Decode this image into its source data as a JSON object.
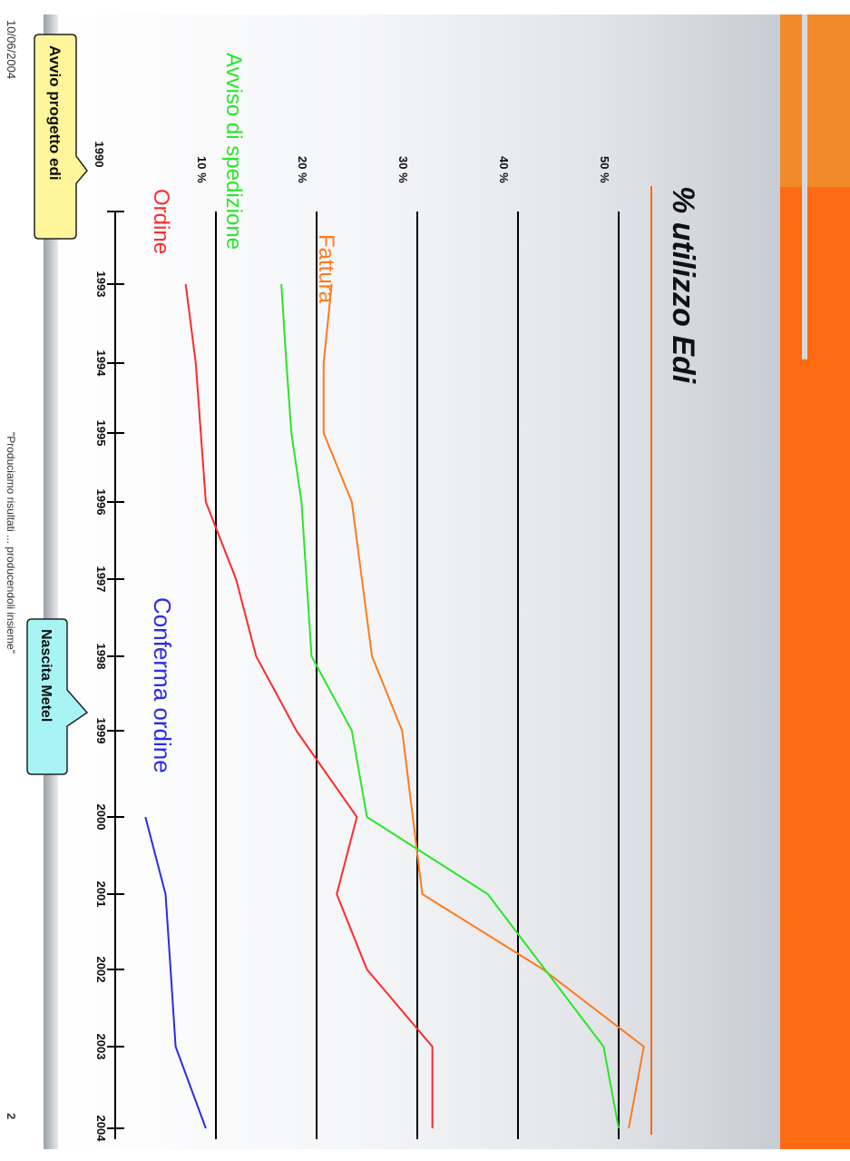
{
  "slide": {
    "date": "10/06/2004",
    "footer": "\"Produciamo risultati ... producendoli insieme\"",
    "page_number": "2",
    "callout_edi": "Avvio progetto edi",
    "callout_metel": "Nascita Metel"
  },
  "colors": {
    "accent": "#ff6a12",
    "Ordine": "#ff2a2a",
    "Avviso di spedizione": "#29e629",
    "Fattura": "#ff7a1e",
    "Conferma ordine": "#2b2be8",
    "callout_edi_bg": "#fff59a",
    "callout_metel_bg": "#a8f4f4"
  },
  "chart_data": {
    "type": "line",
    "orientation": "rotated-90",
    "title": "% utilizzo Edi",
    "xlabel": "",
    "ylabel": "",
    "x_ticks": [
      "1990",
      "1993",
      "1994",
      "1995",
      "1996",
      "1997",
      "1998",
      "1999",
      "2000",
      "2001",
      "2002",
      "2003",
      "2004"
    ],
    "y_ticks": [
      "10 %",
      "20 %",
      "30 %",
      "40 %",
      "50 %"
    ],
    "ylim": [
      0,
      55
    ],
    "grid": true,
    "series": [
      {
        "name": "Fattura",
        "points": [
          {
            "x": "1993",
            "y": 21.5
          },
          {
            "x": "1994",
            "y": 20.7
          },
          {
            "x": "1995",
            "y": 20.7
          },
          {
            "x": "1996",
            "y": 23.5
          },
          {
            "x": "1998",
            "y": 25.5
          },
          {
            "x": "1999",
            "y": 28.5
          },
          {
            "x": "2001",
            "y": 30.5
          },
          {
            "x": "2002",
            "y": 42.5
          },
          {
            "x": "2003",
            "y": 52.5
          },
          {
            "x": "2004",
            "y": 51
          }
        ]
      },
      {
        "name": "Avviso di spedizione",
        "points": [
          {
            "x": "1993",
            "y": 16.5
          },
          {
            "x": "1994",
            "y": 17
          },
          {
            "x": "1995",
            "y": 17.5
          },
          {
            "x": "1996",
            "y": 18.5
          },
          {
            "x": "1998",
            "y": 19.5
          },
          {
            "x": "1999",
            "y": 23.5
          },
          {
            "x": "2000",
            "y": 25
          },
          {
            "x": "2001",
            "y": 37
          },
          {
            "x": "2003",
            "y": 48.5
          },
          {
            "x": "2004",
            "y": 50
          }
        ]
      },
      {
        "name": "Ordine",
        "points": [
          {
            "x": "1993",
            "y": 7
          },
          {
            "x": "1994",
            "y": 8
          },
          {
            "x": "1995",
            "y": 8.5
          },
          {
            "x": "1996",
            "y": 9
          },
          {
            "x": "1997",
            "y": 12
          },
          {
            "x": "1998",
            "y": 14
          },
          {
            "x": "1999",
            "y": 18
          },
          {
            "x": "2000",
            "y": 24
          },
          {
            "x": "2001",
            "y": 22
          },
          {
            "x": "2002",
            "y": 25
          },
          {
            "x": "2003",
            "y": 31.5
          },
          {
            "x": "2004",
            "y": 31.5
          }
        ]
      },
      {
        "name": "Conferma ordine",
        "points": [
          {
            "x": "2000",
            "y": 3
          },
          {
            "x": "2001",
            "y": 5
          },
          {
            "x": "2002",
            "y": 5.5
          },
          {
            "x": "2003",
            "y": 6
          },
          {
            "x": "2004",
            "y": 9
          }
        ]
      }
    ]
  }
}
